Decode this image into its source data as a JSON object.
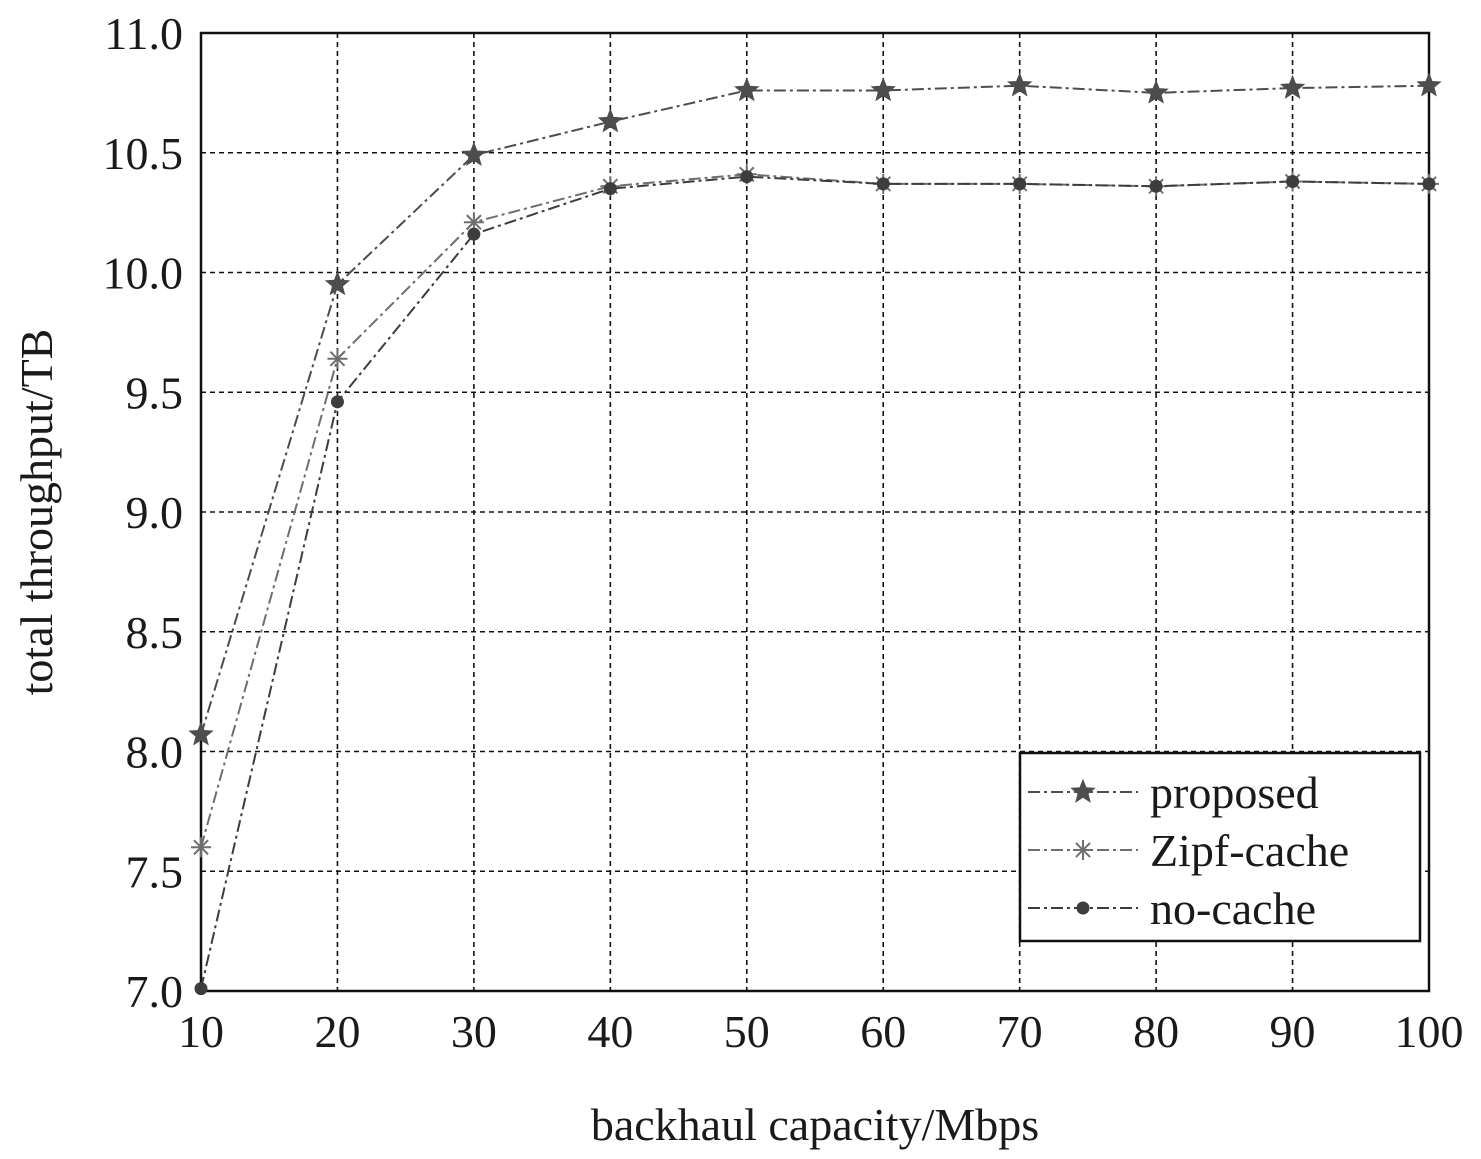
{
  "chart_data": {
    "type": "line",
    "title": "",
    "xlabel": "backhaul capacity/Mbps",
    "ylabel": "total throughput/TB",
    "x": [
      10,
      20,
      30,
      40,
      50,
      60,
      70,
      80,
      90,
      100
    ],
    "x_ticks": [
      "10",
      "20",
      "30",
      "40",
      "50",
      "60",
      "70",
      "80",
      "90",
      "100"
    ],
    "y_ticks": [
      "7.0",
      "7.5",
      "8.0",
      "8.5",
      "9.0",
      "9.5",
      "10.0",
      "10.5",
      "11.0"
    ],
    "xlim": [
      10,
      100
    ],
    "ylim": [
      7.0,
      11.0
    ],
    "grid": true,
    "legend_position": "bottom-right",
    "series": [
      {
        "name": "proposed",
        "marker": "filled-star",
        "color": "#4d4d4d",
        "values": [
          8.07,
          9.95,
          10.49,
          10.63,
          10.76,
          10.76,
          10.78,
          10.75,
          10.77,
          10.78
        ]
      },
      {
        "name": "Zipf-cache",
        "marker": "asterisk",
        "color": "#6e6e6e",
        "values": [
          7.6,
          9.64,
          10.21,
          10.36,
          10.41,
          10.37,
          10.37,
          10.36,
          10.38,
          10.37
        ]
      },
      {
        "name": "no-cache",
        "marker": "dot",
        "color": "#3d3d3d",
        "values": [
          7.01,
          9.46,
          10.16,
          10.35,
          10.4,
          10.37,
          10.37,
          10.36,
          10.38,
          10.37
        ]
      }
    ]
  }
}
